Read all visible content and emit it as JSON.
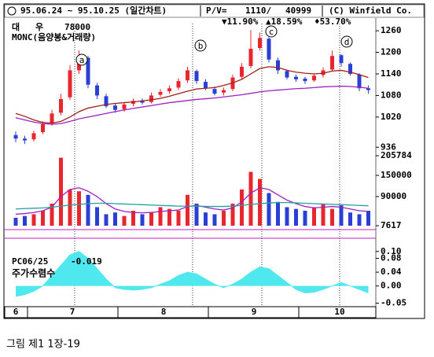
{
  "header": {
    "title": "95.06.24 ~ 95.10.25 (일간차트)",
    "pv_label": "P/V=",
    "pv_value": "1110/",
    "volume": "40999",
    "copyright": "(C) Winfield Co."
  },
  "caption": "그림 제1 1장-19",
  "chart_data": [
    {
      "type": "candlestick",
      "name": "대   우",
      "price_label": "78000",
      "subtitle": "MONC(음양봉&거래량)",
      "annotations": [
        "▼11.90%",
        "▲18.59%",
        "♦53.70%"
      ],
      "markers": [
        "a",
        "b",
        "c",
        "d"
      ],
      "up_color": "#e8262e",
      "down_color": "#2a3fd6",
      "open": [
        970,
        960,
        958,
        978,
        1002,
        1032,
        1075,
        1150,
        1185,
        1108,
        1078,
        1052,
        1042,
        1057,
        1066,
        1062,
        1082,
        1092,
        1102,
        1122,
        1148,
        1118,
        1098,
        1088,
        1098,
        1132,
        1162,
        1212,
        1238,
        1178,
        1148,
        1132,
        1127,
        1122,
        1137,
        1152,
        1192,
        1168,
        1138,
        1100
      ],
      "high": [
        980,
        968,
        982,
        1008,
        1040,
        1085,
        1165,
        1205,
        1190,
        1115,
        1085,
        1058,
        1062,
        1072,
        1072,
        1088,
        1098,
        1108,
        1128,
        1160,
        1152,
        1125,
        1105,
        1102,
        1138,
        1170,
        1262,
        1255,
        1242,
        1185,
        1152,
        1138,
        1132,
        1140,
        1158,
        1205,
        1195,
        1172,
        1142,
        1108
      ],
      "low": [
        950,
        945,
        952,
        972,
        996,
        1025,
        1068,
        1140,
        1100,
        1070,
        1045,
        1032,
        1035,
        1050,
        1055,
        1058,
        1076,
        1085,
        1095,
        1115,
        1112,
        1095,
        1080,
        1080,
        1092,
        1125,
        1155,
        1205,
        1172,
        1140,
        1125,
        1118,
        1112,
        1118,
        1130,
        1148,
        1160,
        1135,
        1092,
        1085
      ],
      "close": [
        960,
        955,
        975,
        1000,
        1030,
        1070,
        1150,
        1190,
        1110,
        1080,
        1050,
        1040,
        1055,
        1065,
        1060,
        1080,
        1090,
        1100,
        1120,
        1150,
        1120,
        1100,
        1085,
        1095,
        1130,
        1160,
        1210,
        1240,
        1180,
        1150,
        1130,
        1125,
        1120,
        1135,
        1150,
        1190,
        1170,
        1140,
        1100,
        1095
      ],
      "moving_averages": [
        {
          "color": "#a0201a",
          "values": [
            1030,
            1022,
            1012,
            1005,
            1003,
            1008,
            1020,
            1035,
            1045,
            1050,
            1055,
            1058,
            1060,
            1062,
            1065,
            1068,
            1072,
            1078,
            1085,
            1092,
            1098,
            1100,
            1102,
            1108,
            1115,
            1125,
            1140,
            1155,
            1160,
            1158,
            1150,
            1145,
            1142,
            1140,
            1142,
            1148,
            1150,
            1145,
            1138,
            1130
          ]
        },
        {
          "color": "#a020c0",
          "values": [
            1018,
            1012,
            1006,
            1002,
            1000,
            1002,
            1008,
            1015,
            1020,
            1025,
            1030,
            1035,
            1040,
            1044,
            1048,
            1052,
            1056,
            1060,
            1063,
            1066,
            1069,
            1071,
            1073,
            1076,
            1079,
            1082,
            1086,
            1090,
            1093,
            1095,
            1097,
            1099,
            1100,
            1102,
            1104,
            1105,
            1106,
            1105,
            1103,
            1100
          ]
        }
      ],
      "ylim": [
        930,
        1280
      ],
      "yticks": [
        1260,
        1200,
        1140,
        1080,
        1020,
        936
      ]
    },
    {
      "type": "bar",
      "values": [
        30000,
        35000,
        40000,
        50000,
        70000,
        200000,
        110000,
        105000,
        95000,
        60000,
        40000,
        45000,
        35000,
        50000,
        40000,
        45000,
        60000,
        55000,
        50000,
        95000,
        70000,
        45000,
        40000,
        50000,
        70000,
        110000,
        160000,
        140000,
        100000,
        75000,
        60000,
        55000,
        50000,
        60000,
        70000,
        55000,
        65000,
        45000,
        40000,
        50000
      ],
      "moving_averages": [
        {
          "color": "#a020c0",
          "values": [
            40000,
            42000,
            45000,
            50000,
            60000,
            90000,
            110000,
            115000,
            105000,
            90000,
            70000,
            55000,
            48000,
            45000,
            44000,
            45000,
            48000,
            50000,
            52000,
            62000,
            65000,
            60000,
            55000,
            52000,
            58000,
            75000,
            100000,
            115000,
            110000,
            95000,
            80000,
            70000,
            62000,
            58000,
            60000,
            62000,
            60000,
            55000,
            50000,
            48000
          ]
        },
        {
          "color": "#20a0a0",
          "values": [
            55000,
            56000,
            57000,
            58000,
            60000,
            63000,
            66000,
            68000,
            70000,
            71000,
            71000,
            70000,
            69000,
            68000,
            67000,
            66000,
            65000,
            64000,
            63000,
            63000,
            63000,
            62000,
            62000,
            62000,
            63000,
            65000,
            68000,
            70000,
            72000,
            73000,
            73000,
            72000,
            71000,
            70000,
            69000,
            68000,
            67000,
            66000,
            65000,
            64000
          ]
        }
      ],
      "ylim": [
        7617,
        205784
      ],
      "yticks": [
        205784,
        150000,
        90000,
        7617
      ]
    },
    {
      "type": "area",
      "title": "PC06/25",
      "current": "-0.019",
      "subtitle": "주가수렴수",
      "color": "#4ee8ee",
      "values": [
        -0.03,
        -0.025,
        -0.015,
        0.0,
        0.03,
        0.06,
        0.09,
        0.1,
        0.08,
        0.05,
        0.02,
        -0.005,
        -0.01,
        -0.012,
        -0.01,
        -0.005,
        0.005,
        0.015,
        0.03,
        0.04,
        0.035,
        0.02,
        0.005,
        -0.005,
        0.005,
        0.02,
        0.04,
        0.055,
        0.05,
        0.03,
        0.01,
        -0.01,
        -0.02,
        -0.018,
        -0.01,
        0.0,
        0.01,
        0.0,
        -0.01,
        -0.02
      ],
      "ylim": [
        -0.06,
        0.12
      ],
      "yticks": [
        {
          "value": 0.1,
          "label": "0.10"
        },
        0.08,
        0.04,
        {
          "value": 0,
          "label": "0.00"
        },
        -0.05
      ],
      "x_labels": [
        "6",
        "7",
        "8",
        "9",
        "10"
      ]
    }
  ]
}
